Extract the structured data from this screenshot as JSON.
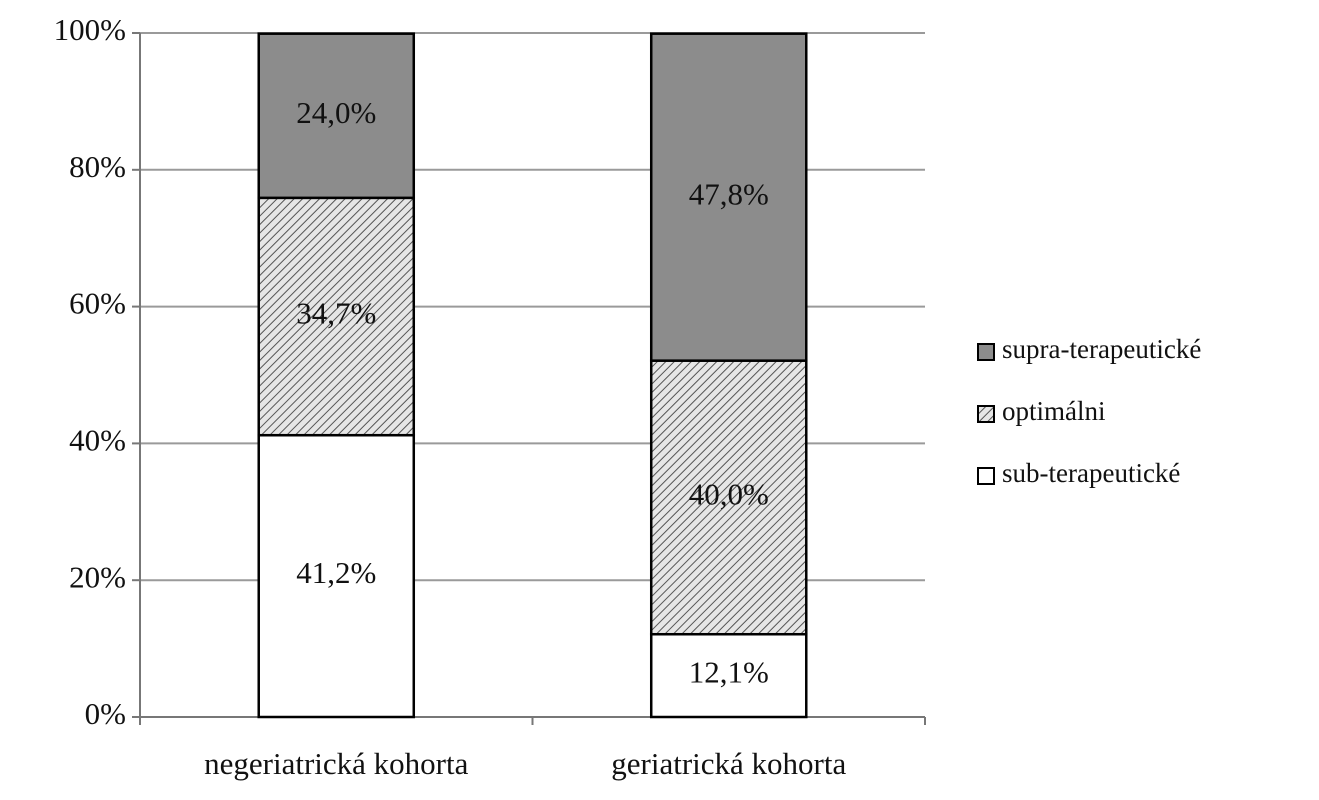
{
  "chart_data": {
    "type": "stacked_bar",
    "categories": [
      "negeriatrická kohorta",
      "geriatrická kohorta"
    ],
    "series": [
      {
        "name": "sub-terapeutické",
        "color": "#ffffff",
        "values": [
          41.2,
          12.1
        ],
        "value_labels": [
          "41,2%",
          "12,1%"
        ]
      },
      {
        "name": "optimálni",
        "color": "#e0e0e0",
        "pattern": "diagonal",
        "values": [
          34.7,
          40.0
        ],
        "value_labels": [
          "34,7%",
          "40,0%"
        ]
      },
      {
        "name": "supra-terapeutické",
        "color": "#8c8c8c",
        "values": [
          24.0,
          47.8
        ],
        "value_labels": [
          "24,0%",
          "47,8%"
        ]
      }
    ],
    "ylim": [
      0,
      100
    ],
    "yticks": [
      {
        "value": 0,
        "label": "0%"
      },
      {
        "value": 20,
        "label": "20%"
      },
      {
        "value": 40,
        "label": "40%"
      },
      {
        "value": 60,
        "label": "60%"
      },
      {
        "value": 80,
        "label": "80%"
      },
      {
        "value": 100,
        "label": "100%"
      }
    ],
    "grid": true,
    "legend": "right"
  }
}
